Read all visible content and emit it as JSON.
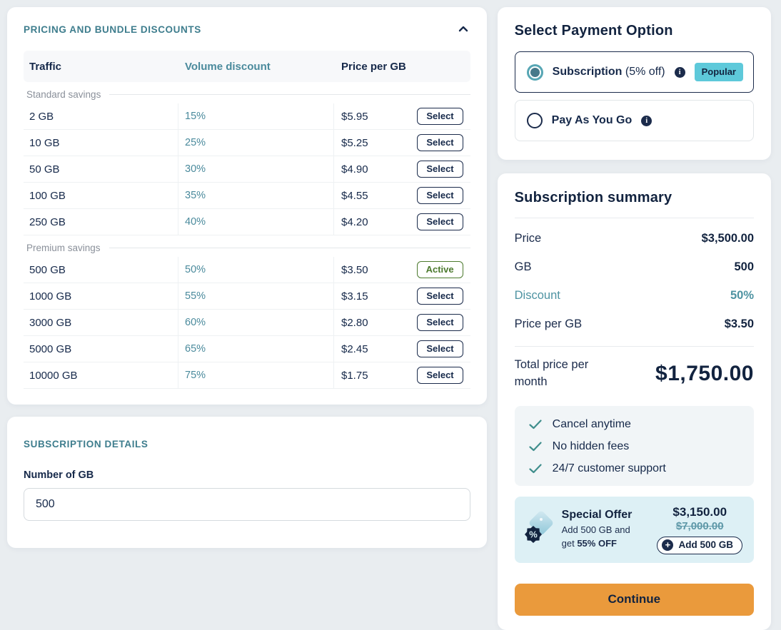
{
  "pricing_card": {
    "title": "PRICING AND BUNDLE DISCOUNTS",
    "columns": [
      "Traffic",
      "Volume discount",
      "Price per GB"
    ],
    "sections": [
      {
        "label": "Standard savings",
        "rows": [
          {
            "traffic": "2 GB",
            "discount": "15%",
            "price": "$5.95",
            "action": "Select"
          },
          {
            "traffic": "10 GB",
            "discount": "25%",
            "price": "$5.25",
            "action": "Select"
          },
          {
            "traffic": "50 GB",
            "discount": "30%",
            "price": "$4.90",
            "action": "Select"
          },
          {
            "traffic": "100 GB",
            "discount": "35%",
            "price": "$4.55",
            "action": "Select"
          },
          {
            "traffic": "250 GB",
            "discount": "40%",
            "price": "$4.20",
            "action": "Select"
          }
        ]
      },
      {
        "label": "Premium savings",
        "rows": [
          {
            "traffic": "500 GB",
            "discount": "50%",
            "price": "$3.50",
            "action": "Active"
          },
          {
            "traffic": "1000 GB",
            "discount": "55%",
            "price": "$3.15",
            "action": "Select"
          },
          {
            "traffic": "3000 GB",
            "discount": "60%",
            "price": "$2.80",
            "action": "Select"
          },
          {
            "traffic": "5000 GB",
            "discount": "65%",
            "price": "$2.45",
            "action": "Select"
          },
          {
            "traffic": "10000 GB",
            "discount": "75%",
            "price": "$1.75",
            "action": "Select"
          }
        ]
      }
    ]
  },
  "subscription_details": {
    "title": "SUBSCRIPTION DETAILS",
    "field_label": "Number of GB",
    "field_value": "500"
  },
  "payment": {
    "title": "Select Payment Option",
    "options": [
      {
        "id": "subscription",
        "label": "Subscription",
        "suffix": " (5% off)",
        "badge": "Popular",
        "selected": true
      },
      {
        "id": "pay-as-you-go",
        "label": "Pay As You Go",
        "suffix": "",
        "badge": "",
        "selected": false
      }
    ]
  },
  "summary": {
    "title": "Subscription summary",
    "rows": [
      {
        "label": "Price",
        "value": "$3,500.00",
        "highlight": false
      },
      {
        "label": "GB",
        "value": "500",
        "highlight": false
      },
      {
        "label": "Discount",
        "value": "50%",
        "highlight": true
      },
      {
        "label": "Price per GB",
        "value": "$3.50",
        "highlight": false
      }
    ],
    "total_label": "Total price per month",
    "total_value": "$1,750.00",
    "benefits": [
      "Cancel anytime",
      "No hidden fees",
      "24/7 customer support"
    ],
    "offer": {
      "title": "Special Offer",
      "subtitle_line1": "Add 500 GB and",
      "subtitle_prefix": "get ",
      "subtitle_bold": "55% OFF",
      "new_price": "$3,150.00",
      "old_price": "$7,000.00",
      "button_label": "Add 500 GB"
    },
    "continue_label": "Continue"
  },
  "colors": {
    "accent_teal": "#3e7d8d",
    "discount_teal": "#4a8a9c",
    "navy": "#16294a",
    "popular_badge": "#5ec9da",
    "active_green": "#4c7a2e",
    "continue_orange": "#ea9a3c",
    "offer_bg": "#ddf0f5",
    "benefits_bg": "#f1f5f7",
    "page_bg": "#e9edf0"
  }
}
